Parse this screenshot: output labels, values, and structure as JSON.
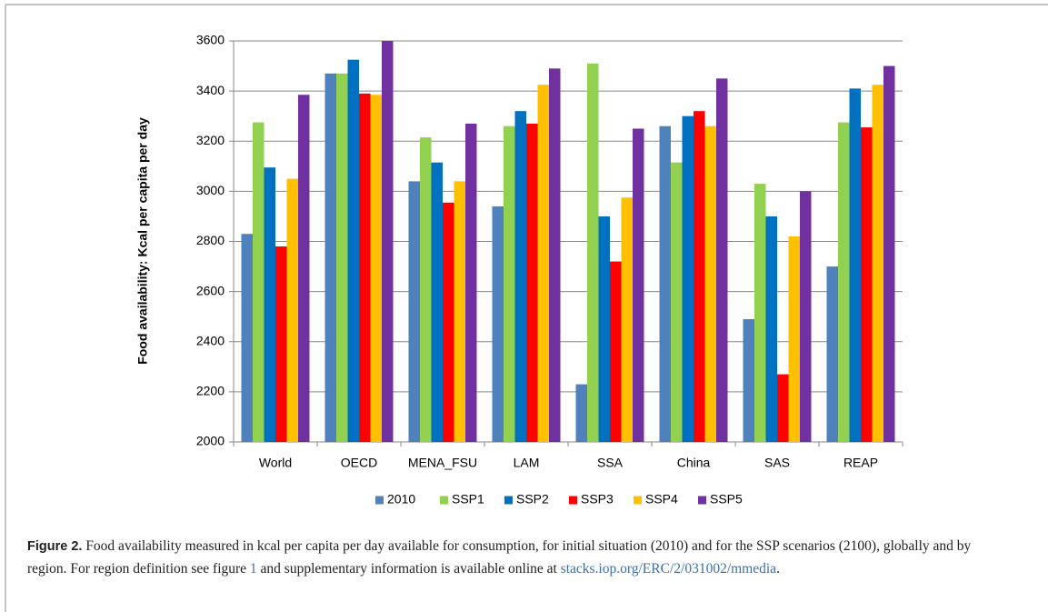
{
  "chart_data": {
    "type": "bar",
    "ylabel": "Food availability: Kcal per capita per day",
    "categories": [
      "World",
      "OECD",
      "MENA_FSU",
      "LAM",
      "SSA",
      "China",
      "SAS",
      "REAP"
    ],
    "series": [
      {
        "name": "2010",
        "color": "#4f81bd",
        "values": [
          2830,
          3470,
          3040,
          2940,
          2230,
          3260,
          2490,
          2700
        ]
      },
      {
        "name": "SSP1",
        "color": "#92d050",
        "values": [
          3275,
          3470,
          3215,
          3260,
          3510,
          3115,
          3030,
          3275
        ]
      },
      {
        "name": "SSP2",
        "color": "#0070c0",
        "values": [
          3095,
          3525,
          3115,
          3320,
          2900,
          3300,
          2900,
          3410
        ]
      },
      {
        "name": "SSP3",
        "color": "#ff0000",
        "values": [
          2780,
          3390,
          2955,
          3270,
          2720,
          3320,
          2270,
          3255
        ]
      },
      {
        "name": "SSP4",
        "color": "#ffc000",
        "values": [
          3050,
          3385,
          3040,
          3425,
          2975,
          3260,
          2820,
          3425
        ]
      },
      {
        "name": "SSP5",
        "color": "#7030a0",
        "values": [
          3385,
          3600,
          3270,
          3490,
          3250,
          3450,
          3000,
          3500
        ]
      }
    ],
    "ylim": [
      2000,
      3600
    ],
    "yticks": [
      2000,
      2200,
      2400,
      2600,
      2800,
      3000,
      3200,
      3400,
      3600
    ],
    "grid": true,
    "legend": "bottom"
  },
  "caption": {
    "label": "Figure 2.",
    "text": " Food availability measured in kcal per capita per day available for consumption, for initial situation (2010) and for the SSP scenarios (2100), globally and by region. For region definition see figure ",
    "ref": "1",
    "text2": " and supplementary information is available online at ",
    "link": "stacks.iop.org/ERC/2/031002/mmedia",
    "end": "."
  }
}
